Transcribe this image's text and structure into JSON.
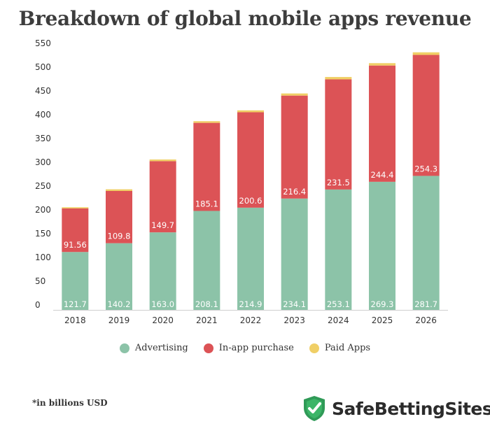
{
  "chart_data": {
    "type": "bar",
    "stacked": true,
    "title": "Breakdown of global mobile apps revenue",
    "categories": [
      "2018",
      "2019",
      "2020",
      "2021",
      "2022",
      "2023",
      "2024",
      "2025",
      "2026"
    ],
    "series": [
      {
        "name": "Advertising",
        "color": "#8cc3a8",
        "values": [
          121.7,
          140.2,
          163.0,
          208.1,
          214.9,
          234.1,
          253.1,
          269.3,
          281.7
        ],
        "labels": [
          "121.7",
          "140.2",
          "163.0",
          "208.1",
          "214.9",
          "234.1",
          "253.1",
          "269.3",
          "281.7"
        ]
      },
      {
        "name": "In-app purchase",
        "color": "#dc5356",
        "values": [
          91.56,
          109.8,
          149.7,
          185.1,
          200.6,
          216.4,
          231.5,
          244.4,
          254.3
        ],
        "labels": [
          "91.56",
          "109.8",
          "149.7",
          "185.1",
          "200.6",
          "216.4",
          "231.5",
          "244.4",
          "254.3"
        ]
      },
      {
        "name": "Paid Apps",
        "color": "#f0cf66",
        "values": [
          2.5,
          3.5,
          3.5,
          3.5,
          4.0,
          4.5,
          5.0,
          5.0,
          5.5
        ]
      }
    ],
    "yticks": [
      "0",
      "50",
      "100",
      "150",
      "200",
      "250",
      "300",
      "350",
      "400",
      "450",
      "500",
      "550"
    ],
    "ylim": [
      0,
      550
    ],
    "legend_position": "bottom"
  },
  "footnote": "*in billions USD",
  "brand": {
    "name": "SafeBettingSites"
  }
}
